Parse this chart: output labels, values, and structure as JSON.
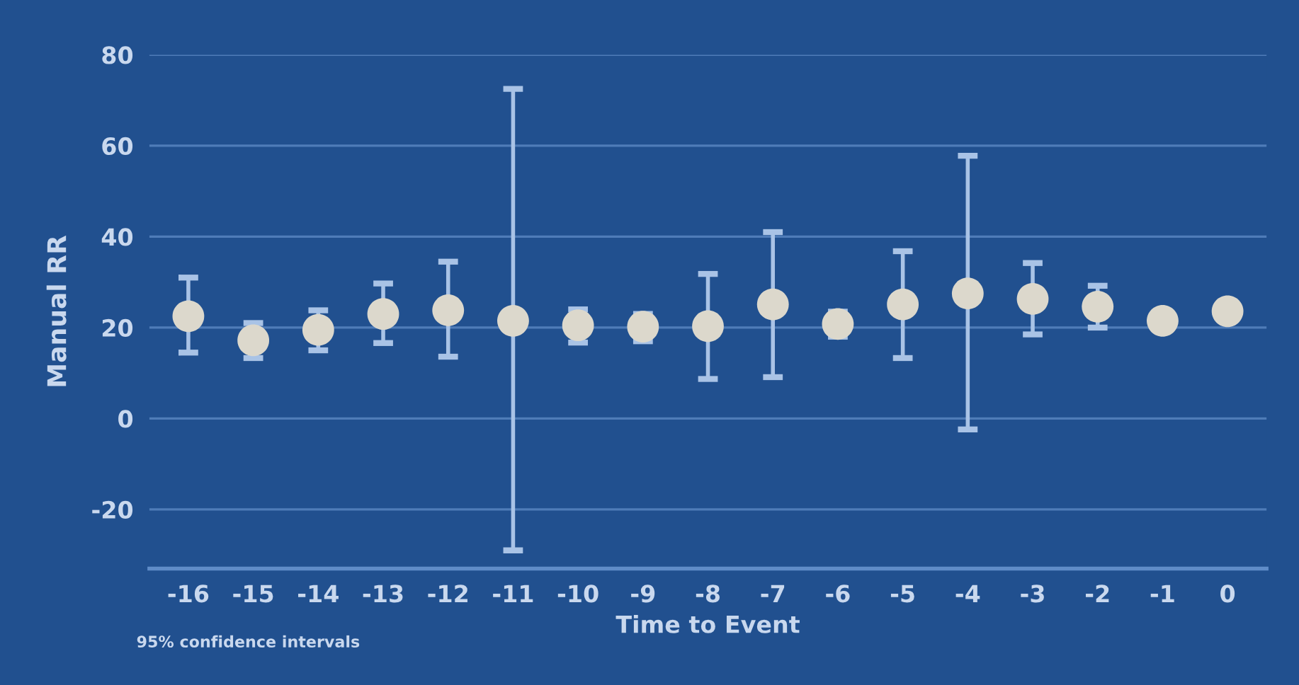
{
  "chart_data": {
    "type": "scatter",
    "ylabel": "Manual RR",
    "xlabel": "Time to Event",
    "annotations": [
      "95% confidence intervals"
    ],
    "categories": [
      "-16",
      "-15",
      "-14",
      "-13",
      "-12",
      "-11",
      "-10",
      "-9",
      "-8",
      "-7",
      "-6",
      "-5",
      "-4",
      "-3",
      "-2",
      "-1",
      "0"
    ],
    "series": [
      {
        "color": "#dcd8cc",
        "values": [
          22.5,
          17.2,
          19.5,
          23,
          23.8,
          21.5,
          20.5,
          20.2,
          20.3,
          25.1,
          20.8,
          25.1,
          27.5,
          26.3,
          24.6,
          21.5,
          23.6
        ],
        "errors": [
          [
            14.5,
            31
          ],
          [
            13.3,
            21
          ],
          [
            15,
            23.8
          ],
          [
            16.6,
            29.7
          ],
          [
            13.6,
            34.5
          ],
          [
            -29,
            72.5
          ],
          [
            16.7,
            24
          ],
          [
            17,
            23
          ],
          [
            8.7,
            31.8
          ],
          [
            9.1,
            41
          ],
          [
            18,
            23.5
          ],
          [
            13.3,
            36.8
          ],
          [
            -2.4,
            57.8
          ],
          [
            18.5,
            34.2
          ],
          [
            20,
            29.2
          ],
          null,
          null
        ]
      }
    ],
    "ylim": [
      -33,
      80
    ],
    "yticks": [
      -20,
      0,
      20,
      40,
      60,
      80
    ],
    "grid": "y",
    "marker": "circle"
  }
}
